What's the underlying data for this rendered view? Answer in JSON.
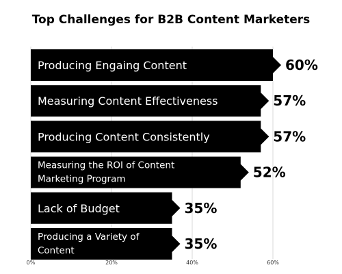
{
  "chart_data": {
    "type": "bar",
    "orientation": "horizontal",
    "title": "Top Challenges for B2B Content Marketers",
    "categories": [
      [
        "Producing Engaing Content"
      ],
      [
        "Measuring Content Effectiveness"
      ],
      [
        "Producing Content Consistently"
      ],
      [
        "Measuring  the ROI of Content",
        "Marketing Program"
      ],
      [
        "Lack of Budget"
      ],
      [
        "Producing a Variety of",
        "Content"
      ]
    ],
    "values": [
      60,
      57,
      57,
      52,
      35,
      35
    ],
    "value_labels": [
      "60%",
      "57%",
      "57%",
      "52%",
      "35%",
      "35%"
    ],
    "x_ticks": [
      {
        "value": 0,
        "label": "0%"
      },
      {
        "value": 20,
        "label": "20%"
      },
      {
        "value": 40,
        "label": "40%"
      },
      {
        "value": 60,
        "label": "60%"
      }
    ],
    "xlim": [
      0,
      60
    ],
    "grid": true,
    "legend": "none",
    "bar_color": "#000000",
    "bar_text_color": "#ffffff",
    "background_color": "#ffffff"
  }
}
